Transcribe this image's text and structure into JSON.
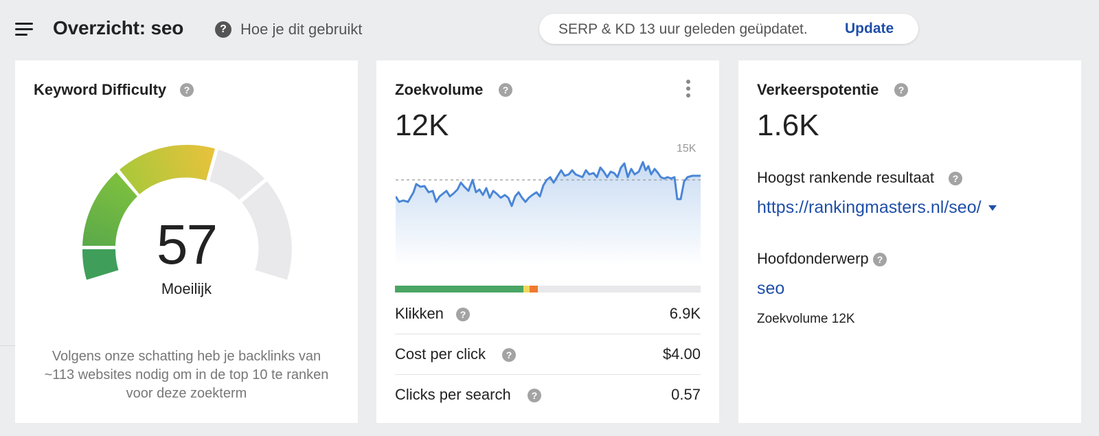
{
  "header": {
    "title": "Overzicht: seo",
    "help_link": "Hoe je dit gebruikt",
    "update_message": "SERP & KD 13 uur geleden geüpdatet.",
    "update_link": "Update"
  },
  "kd_card": {
    "title": "Keyword Difficulty",
    "value": "57",
    "level": "Moeilijk",
    "note": "Volgens onze schatting heb je backlinks van ~113 websites nodig om in de top 10 te ranken voor deze zoekterm"
  },
  "volume_card": {
    "title": "Zoekvolume",
    "value": "12K",
    "chart_max_label": "15K",
    "metrics": [
      {
        "label": "Klikken",
        "value": "6.9K"
      },
      {
        "label": "Cost per click",
        "value": "$4.00"
      },
      {
        "label": "Clicks per search",
        "value": "0.57"
      }
    ]
  },
  "traffic_card": {
    "title": "Verkeerspotentie",
    "value": "1.6K",
    "top_result_label": "Hoogst rankende resultaat",
    "top_result_url": "https://rankingmasters.nl/seo/",
    "parent_topic_label": "Hoofdonderwerp",
    "parent_topic": "seo",
    "parent_topic_volume": "Zoekvolume 12K"
  },
  "colors": {
    "accent_link": "#1f4fa8",
    "trend_line": "#4a86d6",
    "gauge_green_dark": "#3f9e5a",
    "gauge_yellow": "#e6c23c",
    "ctr_green": "#4aa564",
    "ctr_yellow": "#f0d85a",
    "ctr_orange": "#ee7b2f"
  },
  "icons": [
    "menu-icon",
    "help-icon",
    "kebab-menu-icon",
    "caret-down-icon"
  ]
}
